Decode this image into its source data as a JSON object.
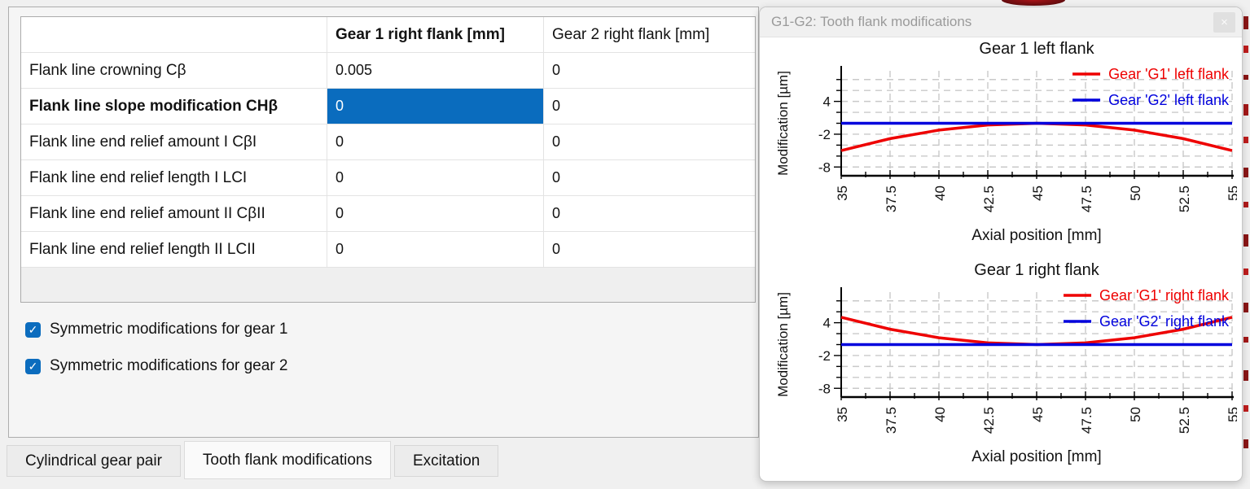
{
  "table": {
    "headers": [
      "",
      "Gear 1 right flank [mm]",
      "Gear 2 right flank [mm]"
    ],
    "rows": [
      {
        "label": "Flank line crowning Cβ",
        "gear1": "0.005",
        "gear2": "0",
        "bold": false,
        "selected_col": null
      },
      {
        "label": "Flank line slope modification CHβ",
        "gear1": "0",
        "gear2": "0",
        "bold": true,
        "selected_col": "gear1"
      },
      {
        "label": "Flank line end relief amount I CβI",
        "gear1": "0",
        "gear2": "0",
        "bold": false,
        "selected_col": null
      },
      {
        "label": "Flank line end relief length I LCI",
        "gear1": "0",
        "gear2": "0",
        "bold": false,
        "selected_col": null
      },
      {
        "label": "Flank line end relief amount II CβII",
        "gear1": "0",
        "gear2": "0",
        "bold": false,
        "selected_col": null
      },
      {
        "label": "Flank line end relief length II LCII",
        "gear1": "0",
        "gear2": "0",
        "bold": false,
        "selected_col": null
      }
    ],
    "selection_color": "#0a6cbe"
  },
  "checkboxes": [
    {
      "label": "Symmetric modifications for gear 1",
      "checked": true
    },
    {
      "label": "Symmetric modifications for gear 2",
      "checked": true
    }
  ],
  "checkbox_color": "#0b6cbe",
  "check_glyph": "✓",
  "tabs": [
    {
      "label": "Cylindrical gear pair",
      "active": false
    },
    {
      "label": "Tooth flank modifications",
      "active": true
    },
    {
      "label": "Excitation",
      "active": false
    }
  ],
  "window": {
    "title": "G1-G2: Tooth flank modifications",
    "close_glyph": "×"
  },
  "chart_data": [
    {
      "type": "line",
      "title": "Gear 1 left flank",
      "xlabel": "Axial position [mm]",
      "ylabel": "Modification [µm]",
      "xlim": [
        35,
        55
      ],
      "ylim": [
        -9.6,
        9.6
      ],
      "x_tick_labels": [
        "35",
        "37.5",
        "40",
        "42.5",
        "45",
        "47.5",
        "50",
        "52.5",
        "55"
      ],
      "y_tick_labels": [
        "4",
        "-2",
        "-8"
      ],
      "grid": true,
      "legend_position": "top-right",
      "series": [
        {
          "name": "Gear 'G1' left flank",
          "color": "#ee0000",
          "x": [
            35,
            37.5,
            40,
            42.5,
            45,
            47.5,
            50,
            52.5,
            55
          ],
          "y": [
            -5,
            -2.81,
            -1.25,
            -0.31,
            0,
            -0.31,
            -1.25,
            -2.81,
            -5
          ]
        },
        {
          "name": "Gear 'G2' left flank",
          "color": "#0000dd",
          "x": [
            35,
            55
          ],
          "y": [
            0,
            0
          ]
        }
      ]
    },
    {
      "type": "line",
      "title": "Gear 1 right flank",
      "xlabel": "Axial position [mm]",
      "ylabel": "Modification [µm]",
      "xlim": [
        35,
        55
      ],
      "ylim": [
        -9.6,
        9.6
      ],
      "x_tick_labels": [
        "35",
        "37.5",
        "40",
        "42.5",
        "45",
        "47.5",
        "50",
        "52.5",
        "55"
      ],
      "y_tick_labels": [
        "4",
        "-2",
        "-8"
      ],
      "grid": true,
      "legend_position": "top-right",
      "series": [
        {
          "name": "Gear 'G1' right flank",
          "color": "#ee0000",
          "x": [
            35,
            37.5,
            40,
            42.5,
            45,
            47.5,
            50,
            52.5,
            55
          ],
          "y": [
            5,
            2.81,
            1.25,
            0.31,
            0,
            0.31,
            1.25,
            2.81,
            5
          ]
        },
        {
          "name": "Gear 'G2' right flank",
          "color": "#0000dd",
          "x": [
            35,
            55
          ],
          "y": [
            0,
            0
          ]
        }
      ]
    }
  ]
}
